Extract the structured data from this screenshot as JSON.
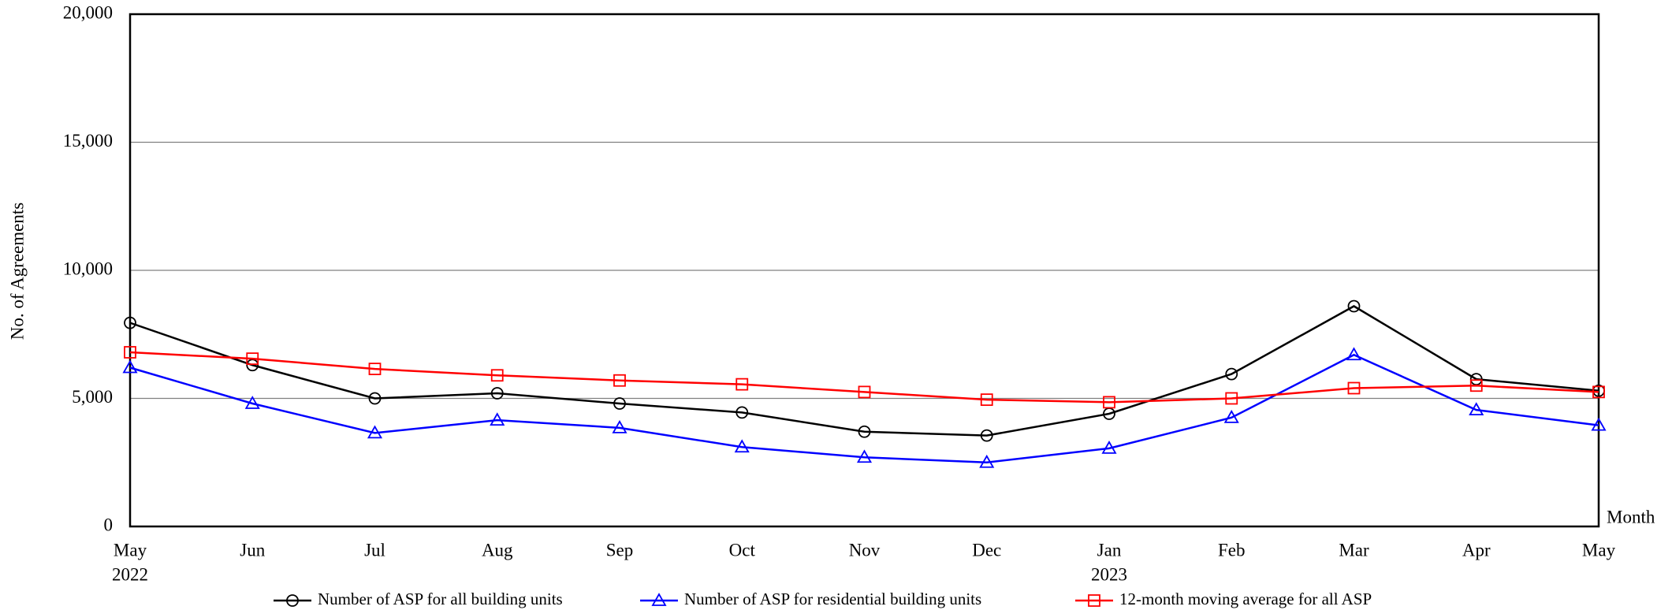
{
  "chart_data": {
    "type": "line",
    "y_label": "No. of Agreements",
    "x_label": "Month",
    "categories": [
      "May",
      "Jun",
      "Jul",
      "Aug",
      "Sep",
      "Oct",
      "Nov",
      "Dec",
      "Jan",
      "Feb",
      "Mar",
      "Apr",
      "May"
    ],
    "category_years": [
      "2022",
      null,
      null,
      null,
      null,
      null,
      null,
      null,
      "2023",
      null,
      null,
      null,
      null
    ],
    "ylim": [
      0,
      20000
    ],
    "yticks": [
      0,
      {
        "value": 5000,
        "label": "5,000"
      },
      {
        "value": 10000,
        "label": "10,000"
      },
      {
        "value": 15000,
        "label": "15,000"
      },
      {
        "value": 20000,
        "label": "20,000"
      }
    ],
    "grid": true,
    "legend": "bottom",
    "series": [
      {
        "name": "Number of ASP for all building units",
        "color": "#000000",
        "marker": "circle",
        "values": [
          7950,
          6300,
          5000,
          5200,
          4800,
          4450,
          3700,
          3550,
          4400,
          5950,
          8600,
          5750,
          5300
        ]
      },
      {
        "name": "Number of ASP for residential building units",
        "color": "#0000ff",
        "marker": "triangle",
        "values": [
          6200,
          4800,
          3650,
          4150,
          3850,
          3100,
          2700,
          2500,
          3050,
          4250,
          6700,
          4550,
          3950
        ]
      },
      {
        "name": "12-month moving average for all ASP",
        "color": "#ff0000",
        "marker": "square",
        "values": [
          6800,
          6550,
          6150,
          5900,
          5700,
          5550,
          5250,
          4950,
          4850,
          5000,
          5400,
          5500,
          5250
        ]
      }
    ]
  }
}
